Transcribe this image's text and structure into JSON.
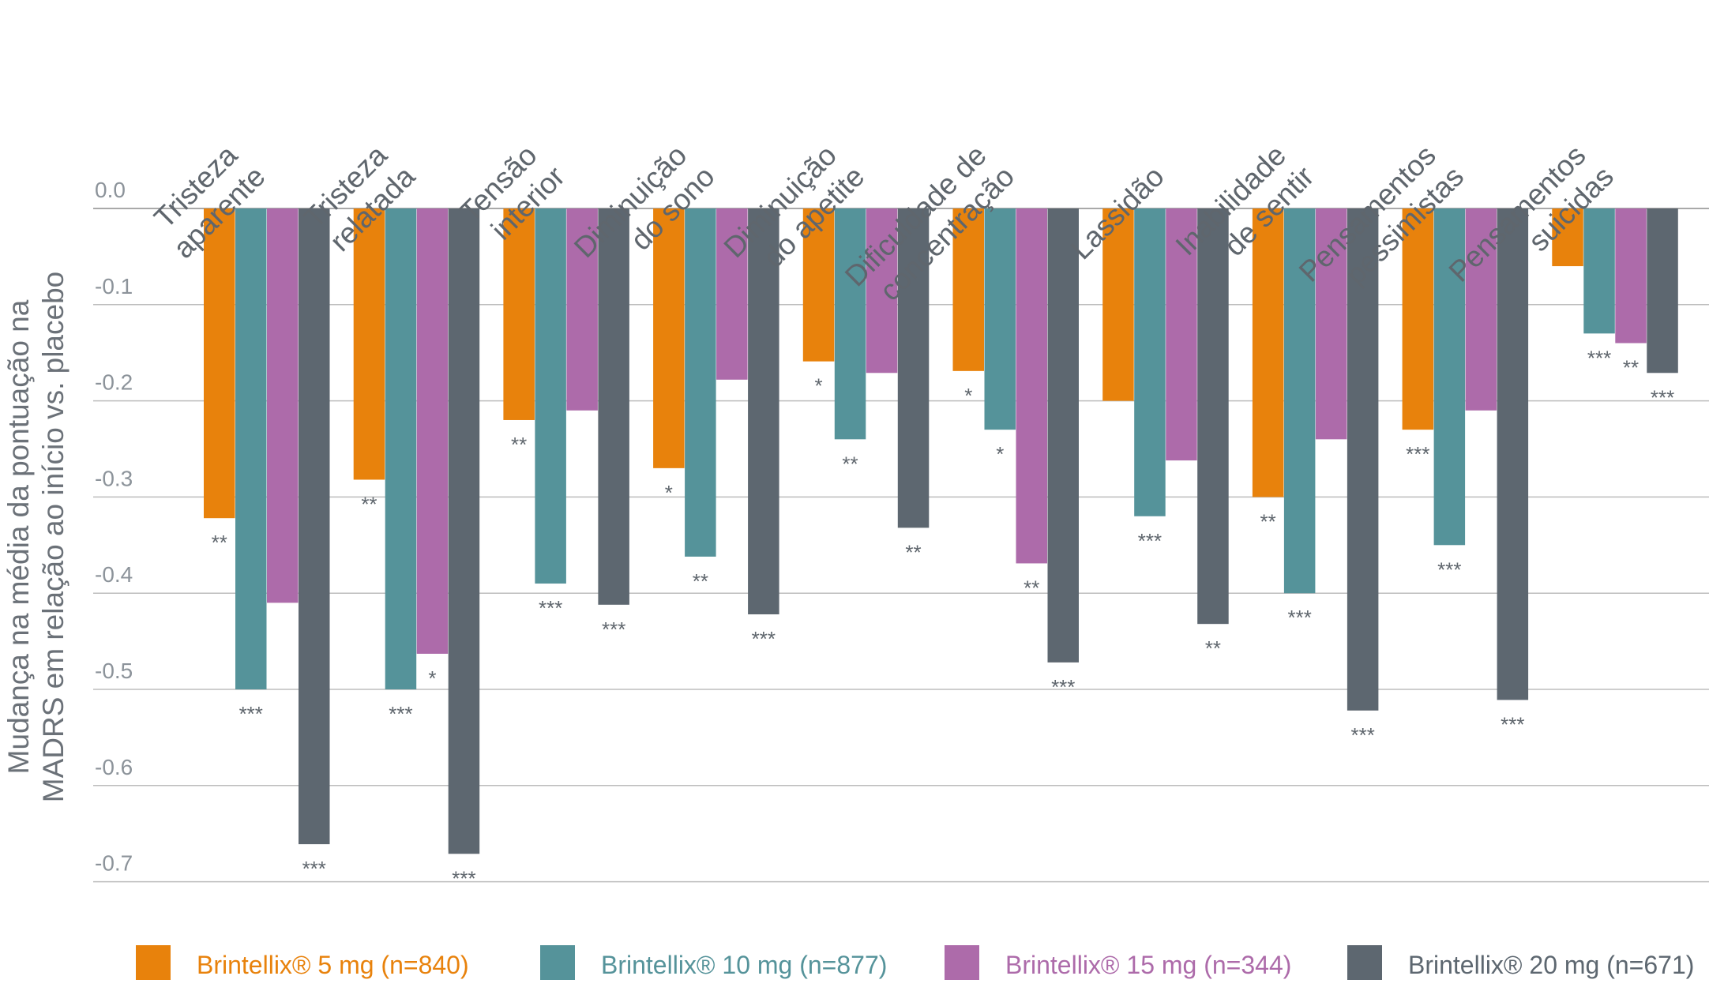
{
  "chart_data": {
    "type": "bar",
    "ylabel_lines": [
      "Mudança na média da pontuação na",
      "MADRS em relação ao início vs. placebo"
    ],
    "ylim": [
      -0.7,
      0.0
    ],
    "yticks": [
      "0.0",
      "-0.1",
      "-0.2",
      "-0.3",
      "-0.4",
      "-0.5",
      "-0.6",
      "-0.7"
    ],
    "ytick_values": [
      0.0,
      -0.1,
      -0.2,
      -0.3,
      -0.4,
      -0.5,
      -0.6,
      -0.7
    ],
    "grid": "horizontal",
    "legend_position": "bottom",
    "categories": [
      [
        "Tristeza",
        "aparente"
      ],
      [
        "Tristeza",
        "relatada"
      ],
      [
        "Tensão",
        "interior"
      ],
      [
        "Diminuição",
        "do sono"
      ],
      [
        "Diminuição",
        "do apetite"
      ],
      [
        "Dificuldade de",
        "concentração"
      ],
      [
        "Lassidão"
      ],
      [
        "Inabilidade",
        "de sentir"
      ],
      [
        "Pensamentos",
        "pessimistas"
      ],
      [
        "Pensamentos",
        "suicidas"
      ]
    ],
    "series": [
      {
        "name": "Brintellix® 5 mg (n=840)",
        "color": "#E8820C",
        "values": [
          -0.322,
          -0.282,
          -0.22,
          -0.27,
          -0.159,
          -0.169,
          -0.2,
          -0.3,
          -0.23,
          -0.06
        ],
        "significance": [
          "**",
          "**",
          "**",
          "*",
          "*",
          "*",
          "",
          "**",
          "***",
          ""
        ]
      },
      {
        "name": "Brintellix® 10 mg (n=877)",
        "color": "#55939A",
        "values": [
          -0.5,
          -0.5,
          -0.39,
          -0.362,
          -0.24,
          -0.23,
          -0.32,
          -0.4,
          -0.35,
          -0.13
        ],
        "significance": [
          "***",
          "***",
          "***",
          "**",
          "**",
          "*",
          "***",
          "***",
          "***",
          "***"
        ]
      },
      {
        "name": "Brintellix® 15 mg (n=344)",
        "color": "#AD6BAA",
        "values": [
          -0.41,
          -0.463,
          -0.21,
          -0.178,
          -0.171,
          -0.369,
          -0.262,
          -0.24,
          -0.21,
          -0.14
        ],
        "significance": [
          "",
          "*",
          "",
          "",
          "",
          "**",
          "",
          "",
          "",
          "**"
        ]
      },
      {
        "name": "Brintellix® 20 mg (n=671)",
        "color": "#5D6770",
        "values": [
          -0.661,
          -0.671,
          -0.412,
          -0.422,
          -0.332,
          -0.472,
          -0.432,
          -0.522,
          -0.511,
          -0.171
        ],
        "significance": [
          "***",
          "***",
          "***",
          "***",
          "**",
          "***",
          "**",
          "***",
          "***",
          "***"
        ]
      }
    ]
  },
  "colors": {
    "axis_text": "#8C939A",
    "gridline": "#BDBDBD",
    "baseline": "#A9A9A9"
  }
}
